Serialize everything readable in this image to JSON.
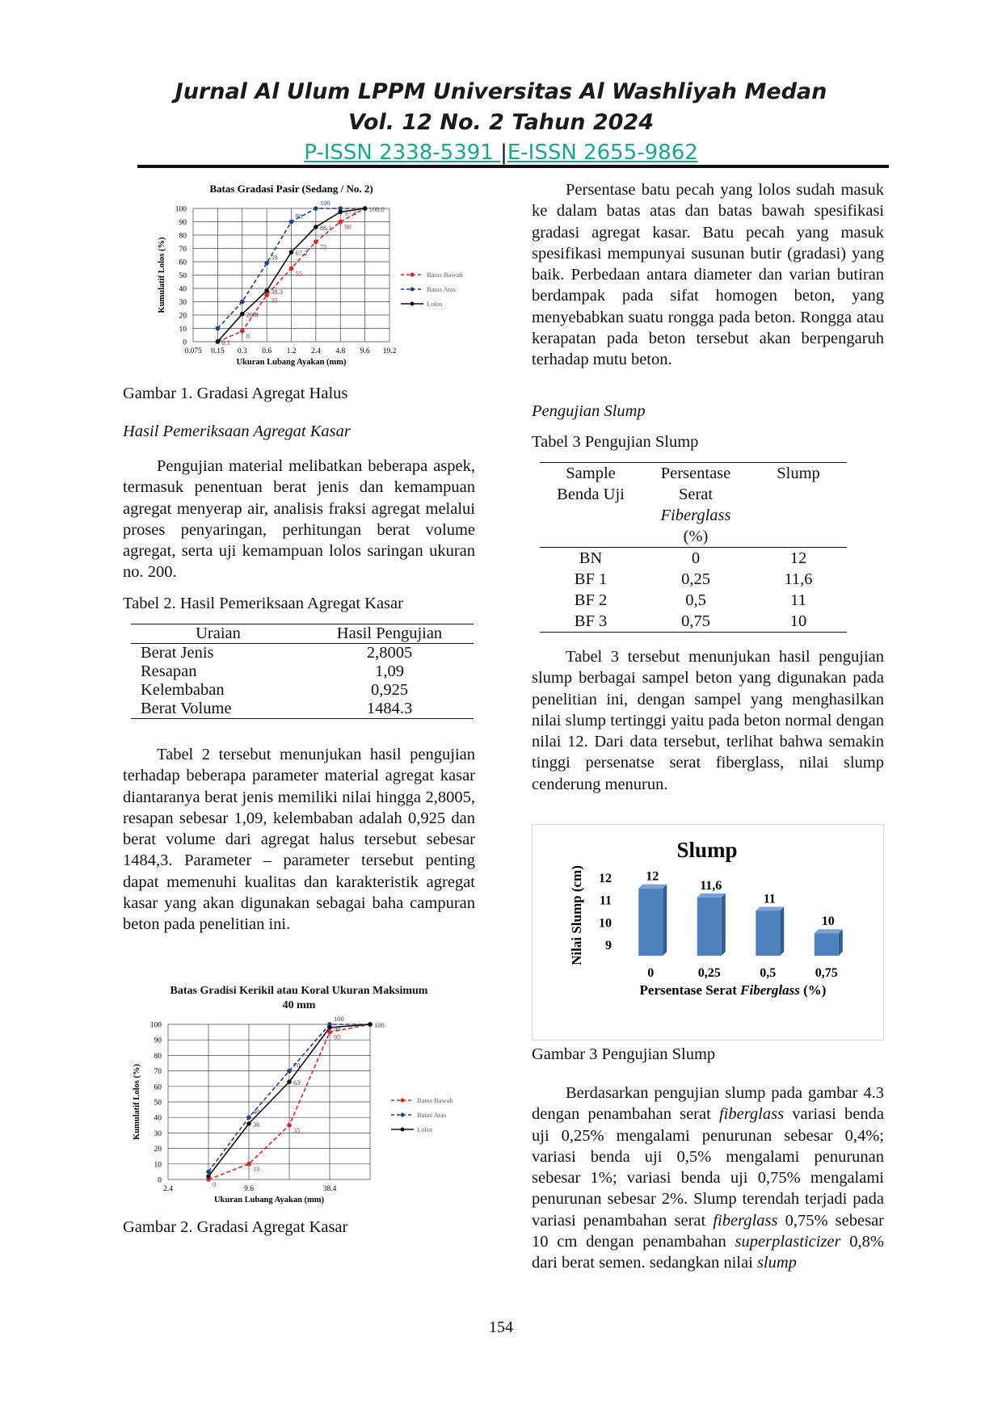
{
  "header": {
    "journal_title": "Jurnal Al Ulum LPPM Universitas Al Washliyah Medan",
    "volume": "Vol. 12 No. 2 Tahun 2024",
    "p_issn": "P-ISSN 2338-5391 ",
    "separator": "|",
    "e_issn": "E-ISSN 2655-9862 "
  },
  "figure1": {
    "caption": "Gambar 1. Gradasi Agregat Halus",
    "chart_data": {
      "type": "line",
      "title": "Batas Gradasi Pasir (Sedang / No. 2)",
      "xlabel": "Ukuran Lubang Ayakan (mm)",
      "ylabel": "Kumulatif Lolos (%)",
      "categories": [
        "0.075",
        "0.15",
        "0.3",
        "0.6",
        "1.2",
        "2.4",
        "4.8",
        "9.6",
        "19.2"
      ],
      "y_ticks": [
        "0",
        "10",
        "20",
        "30",
        "40",
        "50",
        "60",
        "70",
        "80",
        "90",
        "100"
      ],
      "ylim": [
        0,
        100
      ],
      "grid": true,
      "legend_position": "right",
      "series": [
        {
          "name": "Batas Bawah",
          "color": "#d62728",
          "style": "dashed",
          "values": [
            null,
            0,
            8,
            35,
            55,
            75,
            90,
            100,
            null
          ],
          "labels": [
            "",
            "",
            "8",
            "35",
            "55",
            "75",
            "90",
            "",
            ""
          ]
        },
        {
          "name": "Batas Atas",
          "color": "#1f3e8c",
          "style": "dashed",
          "values": [
            null,
            10,
            30,
            59,
            90,
            100,
            100,
            100,
            null
          ],
          "labels": [
            "",
            "",
            "",
            "59",
            "90",
            "100",
            "",
            "",
            ""
          ]
        },
        {
          "name": "Lolos",
          "color": "#111111",
          "style": "solid",
          "values": [
            null,
            0.1,
            20.8,
            38.3,
            67.2,
            86.1,
            97.4,
            100.0,
            null
          ],
          "labels": [
            "",
            "0.1",
            "20.8",
            "38.3",
            "67.2",
            "86.1",
            "97.4",
            "100.0",
            ""
          ]
        }
      ]
    }
  },
  "section_kasar": {
    "heading": "Hasil Pemeriksaan Agregat Kasar",
    "paragraph": "Pengujian material melibatkan beberapa aspek, termasuk penentuan berat jenis dan kemampuan agregat menyerap air, analisis fraksi agregat melalui proses penyaringan, perhitungan berat volume agregat, serta uji kemampuan lolos saringan ukuran no. 200."
  },
  "table2": {
    "caption": "Tabel 2. Hasil Pemeriksaan Agregat Kasar",
    "headers": [
      "Uraian",
      "Hasil Pengujian"
    ],
    "rows": [
      [
        "Berat Jenis",
        "2,8005"
      ],
      [
        "Resapan",
        "1,09"
      ],
      [
        "Kelembaban",
        "0,925"
      ],
      [
        "Berat Volume",
        "1484.3"
      ]
    ]
  },
  "paragraph_table2": "Tabel 2 tersebut menunjukan hasil pengujian terhadap beberapa parameter material agregat kasar diantaranya berat jenis memiliki nilai hingga 2,8005,  resapan sebesar 1,09, kelembaban adalah 0,925 dan berat volume dari agregat halus tersebut sebesar 1484,3. Parameter – parameter tersebut penting dapat memenuhi kualitas dan karakteristik agregat kasar yang akan digunakan sebagai baha campuran beton pada penelitian ini.",
  "figure2": {
    "caption": "Gambar 2. Gradasi Agregat Kasar",
    "chart_data": {
      "type": "line",
      "title": "Batas Gradisi Kerikil atau Koral Ukuran Maksimum 40 mm",
      "xlabel": "Ukuran Lubang Ayakan (mm)",
      "ylabel": "Kumulatif Lolos (%)",
      "categories": [
        "2.4",
        "4.8",
        "9.6",
        "19.2",
        "38.4",
        "76.8"
      ],
      "x_tick_labels": [
        "2.4",
        "",
        "9.6",
        "",
        "38.4",
        ""
      ],
      "y_ticks": [
        "0",
        "10",
        "20",
        "30",
        "40",
        "50",
        "60",
        "70",
        "80",
        "90",
        "100"
      ],
      "ylim": [
        0,
        100
      ],
      "grid": true,
      "legend_position": "right",
      "series": [
        {
          "name": "Batas Bawah",
          "color": "#d62728",
          "style": "dashed",
          "values": [
            null,
            0,
            10,
            35,
            95,
            100
          ],
          "labels": [
            "",
            "0",
            "10",
            "35",
            "95",
            ""
          ]
        },
        {
          "name": "Batas Atas",
          "color": "#1f3e8c",
          "style": "dashed",
          "values": [
            null,
            5,
            40,
            70,
            100,
            100
          ],
          "labels": [
            "",
            "",
            "40",
            "70",
            "100",
            ""
          ]
        },
        {
          "name": "Lolos",
          "color": "#111111",
          "style": "solid",
          "values": [
            null,
            2,
            36,
            63,
            98,
            100
          ],
          "labels": [
            "",
            "",
            "36",
            "63",
            "98",
            "100"
          ]
        }
      ]
    }
  },
  "right_para1": "Persentase batu pecah yang lolos sudah masuk  ke dalam batas  atas dan batas bawah spesifikasi gradasi agregat kasar. Batu pecah yang masuk spesifikasi mempunyai susunan butir (gradasi) yang baik. Perbedaan antara diameter dan varian butiran berdampak pada sifat homogen beton, yang menyebabkan suatu rongga pada beton. Rongga atau kerapatan pada beton tersebut akan berpengaruh terhadap mutu beton.",
  "section_slump": {
    "heading": "Pengujian Slump"
  },
  "table3": {
    "caption": "Tabel 3 Pengujian Slump",
    "header_col1_line1": "Sample",
    "header_col1_line2": "Benda Uji",
    "header_col2_line1": "Persentase",
    "header_col2_line2": "Serat",
    "header_col2_line3": "Fiberglass",
    "header_col2_line4": "(%)",
    "header_col3": "Slump",
    "rows": [
      [
        "BN",
        "0",
        "12"
      ],
      [
        "BF 1",
        "0,25",
        "11,6"
      ],
      [
        "BF 2",
        "0,5",
        "11"
      ],
      [
        "BF 3",
        "0,75",
        "10"
      ]
    ]
  },
  "right_para2": "Tabel 3 tersebut menunjukan hasil pengujian slump berbagai sampel beton yang digunakan pada penelitian ini, dengan sampel yang menghasilkan nilai slump tertinggi yaitu pada beton normal dengan nilai 12. Dari data tersebut, terlihat bahwa semakin tinggi persenatse serat fiberglass, nilai slump cenderung menurun.",
  "figure3": {
    "caption": "Gambar 3 Pengujian Slump",
    "chart_data": {
      "type": "bar",
      "title": "Slump",
      "xlabel_prefix": "Persentase Serat ",
      "xlabel_italic": "Fiberglass",
      "xlabel_suffix": " (%)",
      "ylabel": "Nilai Slump (cm)",
      "categories": [
        "0",
        "0,25",
        "0,5",
        "0,75"
      ],
      "values": [
        12,
        11.6,
        11,
        10
      ],
      "data_labels": [
        "12",
        "11,6",
        "11",
        "10"
      ],
      "y_ticks": [
        "9",
        "10",
        "11",
        "12"
      ],
      "ylim": [
        9,
        12
      ],
      "bar_color": "#4f81bd"
    }
  },
  "right_para3": {
    "s1": "Berdasarkan pengujian slump pada gambar 4.3  dengan penambahan serat ",
    "s1_italic": "fiberglass",
    "s2": " variasi benda uji 0,25% mengalami penurunan sebesar 0,4%;  variasi benda uji 0,5% mengalami penurunan sebesar 1%; variasi benda uji 0,75% mengalami penurunan sebesar 2%. Slump terendah terjadi pada variasi penambahan serat ",
    "s2_italic": "fiberglass",
    "s3": " 0,75% sebesar 10 cm dengan penambahan ",
    "s3_italic": "superplasticizer",
    "s4": " 0,8% dari berat semen. sedangkan nilai ",
    "s4_italic": "slump"
  },
  "page_number": "154"
}
